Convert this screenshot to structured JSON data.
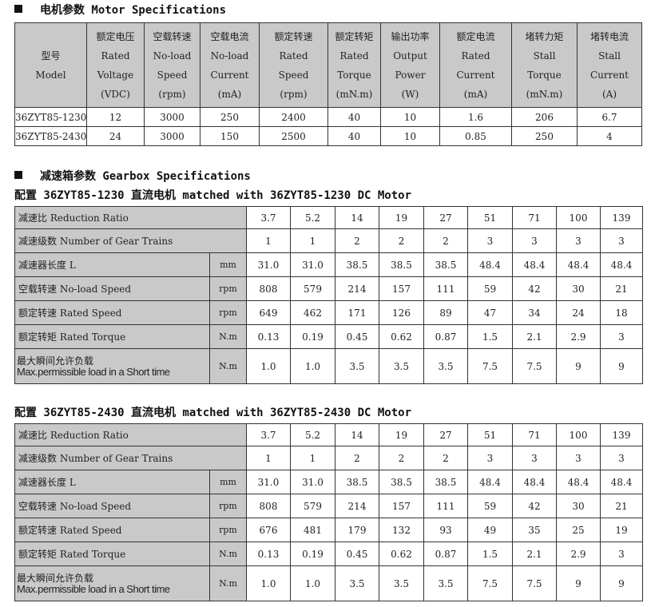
{
  "motor": {
    "heading": "电机参数 Motor Specifications",
    "headers": [
      [
        "型号",
        "Model"
      ],
      [
        "额定电压",
        "Rated",
        "Voltage",
        "(VDC)"
      ],
      [
        "空载转速",
        "No-load",
        "Speed",
        "(rpm)"
      ],
      [
        "空载电流",
        "No-load",
        "Current",
        "(mA)"
      ],
      [
        "额定转速",
        "Rated",
        "Speed",
        "(rpm)"
      ],
      [
        "额定转矩",
        "Rated",
        "Torque",
        "(mN.m)"
      ],
      [
        "输出功率",
        "Output",
        "Power",
        "(W)"
      ],
      [
        "额定电流",
        "Rated",
        "Current",
        "(mA)"
      ],
      [
        "堵转力矩",
        "Stall",
        "Torque",
        "(mN.m)"
      ],
      [
        "堵转电流",
        "Stall",
        "Current",
        "(A)"
      ]
    ],
    "rows": [
      [
        "36ZYT85-1230",
        "12",
        "3000",
        "250",
        "2400",
        "40",
        "10",
        "1.6",
        "206",
        "6.7"
      ],
      [
        "36ZYT85-2430",
        "24",
        "3000",
        "150",
        "2500",
        "40",
        "10",
        "0.85",
        "250",
        "4"
      ]
    ]
  },
  "gearbox": {
    "heading": "减速箱参数 Gearbox Specifications",
    "tables": [
      {
        "title": "配置 36ZYT85-1230 直流电机 matched with 36ZYT85-1230 DC Motor",
        "rows": [
          {
            "label": "减速比 Reduction Ratio",
            "unit": "",
            "values": [
              "3.7",
              "5.2",
              "14",
              "19",
              "27",
              "51",
              "71",
              "100",
              "139"
            ]
          },
          {
            "label": "减速级数 Number of Gear Trains",
            "unit": "",
            "values": [
              "1",
              "1",
              "2",
              "2",
              "2",
              "3",
              "3",
              "3",
              "3"
            ]
          },
          {
            "label": "减速器长度 L",
            "unit": "mm",
            "values": [
              "31.0",
              "31.0",
              "38.5",
              "38.5",
              "38.5",
              "48.4",
              "48.4",
              "48.4",
              "48.4"
            ]
          },
          {
            "label": "空载转速 No-load Speed",
            "unit": "rpm",
            "values": [
              "808",
              "579",
              "214",
              "157",
              "111",
              "59",
              "42",
              "30",
              "21"
            ]
          },
          {
            "label": "额定转速 Rated Speed",
            "unit": "rpm",
            "values": [
              "649",
              "462",
              "171",
              "126",
              "89",
              "47",
              "34",
              "24",
              "18"
            ]
          },
          {
            "label": "额定转矩 Rated Torque",
            "unit": "N.m",
            "values": [
              "0.13",
              "0.19",
              "0.45",
              "0.62",
              "0.87",
              "1.5",
              "2.1",
              "2.9",
              "3"
            ]
          },
          {
            "label": "最大瞬间允许负载",
            "label2": "Max.permissible load in a Short time",
            "unit": "N.m",
            "values": [
              "1.0",
              "1.0",
              "3.5",
              "3.5",
              "3.5",
              "7.5",
              "7.5",
              "9",
              "9"
            ]
          }
        ]
      },
      {
        "title": "配置 36ZYT85-2430 直流电机 matched with 36ZYT85-2430 DC Motor",
        "rows": [
          {
            "label": "减速比 Reduction Ratio",
            "unit": "",
            "values": [
              "3.7",
              "5.2",
              "14",
              "19",
              "27",
              "51",
              "71",
              "100",
              "139"
            ]
          },
          {
            "label": "减速级数 Number of Gear Trains",
            "unit": "",
            "values": [
              "1",
              "1",
              "2",
              "2",
              "2",
              "3",
              "3",
              "3",
              "3"
            ]
          },
          {
            "label": "减速器长度 L",
            "unit": "mm",
            "values": [
              "31.0",
              "31.0",
              "38.5",
              "38.5",
              "38.5",
              "48.4",
              "48.4",
              "48.4",
              "48.4"
            ]
          },
          {
            "label": "空载转速 No-load Speed",
            "unit": "rpm",
            "values": [
              "808",
              "579",
              "214",
              "157",
              "111",
              "59",
              "42",
              "30",
              "21"
            ]
          },
          {
            "label": "额定转速 Rated Speed",
            "unit": "rpm",
            "values": [
              "676",
              "481",
              "179",
              "132",
              "93",
              "49",
              "35",
              "25",
              "19"
            ]
          },
          {
            "label": "额定转矩 Rated Torque",
            "unit": "N.m",
            "values": [
              "0.13",
              "0.19",
              "0.45",
              "0.62",
              "0.87",
              "1.5",
              "2.1",
              "2.9",
              "3"
            ]
          },
          {
            "label": "最大瞬间允许负载",
            "label2": "Max.permissible load in a Short time",
            "unit": "N.m",
            "values": [
              "1.0",
              "1.0",
              "3.5",
              "3.5",
              "3.5",
              "7.5",
              "7.5",
              "9",
              "9"
            ]
          }
        ]
      }
    ]
  }
}
